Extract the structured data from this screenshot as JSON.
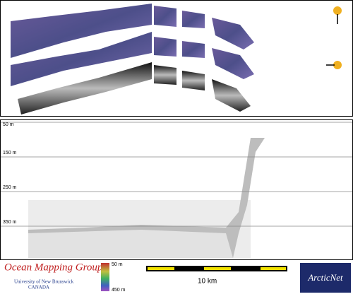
{
  "depth_panel": {
    "labels": [
      "50 m",
      "150 m",
      "250 m",
      "350 m"
    ]
  },
  "footer": {
    "group": "Ocean Mapping Group",
    "university": "University of New Brunswick",
    "country": "CANADA",
    "colorbar": {
      "top": "50 m",
      "bottom": "450 m"
    },
    "scale": "10 km",
    "logo": "ArcticNet"
  }
}
